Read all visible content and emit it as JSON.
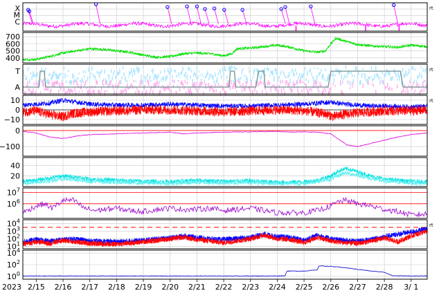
{
  "chart_data": {
    "type": "line",
    "title": "",
    "xaxis": {
      "start_label": "2023",
      "ticks": [
        "2/15",
        "2/16",
        "2/17",
        "2/18",
        "2/19",
        "2/20",
        "2/21",
        "2/22",
        "2/23",
        "2/24",
        "2/25",
        "2/26",
        "2/27",
        "2/28",
        "3/ 1"
      ],
      "range_days": [
        14.5,
        29.6
      ],
      "tick_days": [
        15,
        16,
        17,
        18,
        19,
        20,
        21,
        22,
        23,
        24,
        25,
        26,
        27,
        28,
        29
      ],
      "grid": true
    },
    "panels": [
      {
        "id": "flares",
        "ylabels": [
          "X",
          "M",
          "C"
        ],
        "unit_label": "rt",
        "series": [
          {
            "color": "#ff00ff"
          }
        ],
        "flare_markers_days": [
          14.7,
          14.74,
          17.23,
          19.9,
          20.63,
          21.0,
          21.3,
          21.65,
          22.02,
          22.7,
          24.15,
          24.3,
          25.25,
          28.35
        ],
        "flare_marker_levels": [
          0.75,
          0.7,
          0.95,
          0.85,
          0.87,
          0.87,
          0.78,
          0.8,
          0.75,
          0.75,
          0.78,
          0.85,
          0.87,
          0.92
        ]
      },
      {
        "id": "speed",
        "ylabels": [
          "700",
          "600",
          "500",
          "400"
        ],
        "ylim": [
          330,
          760
        ],
        "series": [
          {
            "color": "#00e000",
            "x": [
              14.5,
              15.0,
              15.5,
              16.0,
              16.5,
              17.0,
              17.5,
              18.0,
              18.5,
              19.0,
              19.5,
              20.0,
              20.5,
              21.0,
              21.5,
              22.0,
              22.3,
              22.5,
              23.0,
              23.5,
              24.0,
              24.5,
              25.0,
              25.5,
              25.8,
              26.0,
              26.2,
              26.5,
              27.0,
              27.5,
              28.0,
              28.5,
              29.0,
              29.6
            ],
            "y": [
              375,
              380,
              420,
              470,
              500,
              530,
              520,
              500,
              480,
              440,
              410,
              420,
              460,
              470,
              460,
              430,
              460,
              530,
              540,
              560,
              580,
              550,
              500,
              480,
              500,
              600,
              680,
              640,
              590,
              570,
              560,
              550,
              580,
              560
            ]
          }
        ]
      },
      {
        "id": "polarity",
        "ylabels": [
          "T",
          "A"
        ],
        "unit_label": "rt",
        "series": [
          {
            "color": "#aee6ff",
            "name": ""
          },
          {
            "color": "#ffb0ee",
            "name": ""
          },
          {
            "color": "#6e8e8e",
            "name": "",
            "x": [
              14.5,
              15.1,
              15.15,
              15.3,
              15.35,
              22.2,
              22.25,
              22.4,
              22.45,
              23.2,
              23.3,
              23.5,
              23.55,
              25.9,
              26.0,
              28.6,
              28.7,
              29.1,
              29.2,
              29.6
            ],
            "y": [
              0,
              0,
              1,
              1,
              0,
              0,
              1,
              1,
              0,
              0,
              1,
              1,
              0,
              0,
              1,
              1,
              0,
              0,
              0,
              0
            ]
          }
        ]
      },
      {
        "id": "imf",
        "ylabels": [
          "10",
          "0",
          "−10"
        ],
        "ylim": [
          -15,
          15
        ],
        "unit_label": "rt",
        "series": [
          {
            "color": "#0000ff",
            "x": [
              14.5,
              15.5,
              16.0,
              16.5,
              17.0,
              18.0,
              19.0,
              20.0,
              21.0,
              22.0,
              23.0,
              24.0,
              25.0,
              26.0,
              26.5,
              27.0,
              27.5,
              28.0,
              29.0,
              29.6
            ],
            "y": [
              5,
              7,
              10,
              8,
              6,
              5,
              5,
              6,
              5,
              4,
              4,
              5,
              6,
              8,
              6,
              5,
              4,
              4,
              3,
              4
            ]
          },
          {
            "color": "#ff0000",
            "x": [
              14.5,
              15.0,
              15.5,
              16.0,
              16.3,
              16.6,
              17.0,
              18.0,
              19.0,
              20.0,
              21.0,
              22.0,
              23.0,
              24.0,
              25.0,
              25.8,
              26.1,
              26.4,
              27.0,
              28.0,
              29.0,
              29.6
            ],
            "y": [
              -2,
              -1,
              -5,
              -7,
              -4,
              -3,
              -2,
              -1,
              0,
              0,
              -1,
              -2,
              -1,
              0,
              -1,
              -4,
              -7,
              -5,
              -3,
              -1,
              -1,
              0
            ]
          }
        ]
      },
      {
        "id": "dst",
        "ylabels": [
          "0",
          "−100"
        ],
        "ylim": [
          -160,
          30
        ],
        "series": [
          {
            "color": "#dd00dd",
            "x": [
              14.5,
              15.0,
              15.5,
              16.0,
              16.5,
              17.0,
              18.0,
              19.0,
              20.0,
              20.5,
              21.0,
              22.0,
              23.0,
              24.0,
              24.5,
              25.0,
              25.5,
              26.0,
              26.3,
              26.6,
              27.0,
              27.5,
              28.0,
              28.5,
              29.0,
              29.6
            ],
            "y": [
              -5,
              -15,
              -40,
              -50,
              -35,
              -25,
              -20,
              -15,
              -10,
              -20,
              -15,
              -10,
              -8,
              -5,
              -10,
              -8,
              -10,
              -20,
              -55,
              -90,
              -100,
              -80,
              -60,
              -40,
              -25,
              -15
            ]
          }
        ]
      },
      {
        "id": "kp",
        "ylabels": [
          "40",
          "20"
        ],
        "ylim": [
          0,
          55
        ],
        "series": [
          {
            "color": "#00e0e0",
            "x": [
              14.5,
              15.0,
              15.5,
              16.0,
              16.5,
              17.0,
              18.0,
              19.0,
              20.0,
              21.0,
              22.0,
              23.0,
              24.0,
              25.0,
              25.5,
              26.0,
              26.3,
              26.6,
              27.0,
              27.5,
              28.0,
              29.0,
              29.6
            ],
            "y": [
              10,
              12,
              16,
              20,
              18,
              14,
              12,
              10,
              9,
              12,
              10,
              11,
              8,
              9,
              12,
              20,
              30,
              34,
              28,
              20,
              14,
              10,
              9
            ]
          },
          {
            "color": "#60f0f0",
            "x": [
              14.5,
              15.5,
              16.0,
              16.5,
              17.0,
              18.0,
              19.0,
              20.0,
              21.0,
              22.0,
              23.0,
              24.0,
              25.0,
              26.0,
              26.5,
              27.0,
              27.5,
              28.0,
              29.0,
              29.6
            ],
            "y": [
              6,
              10,
              15,
              13,
              10,
              8,
              7,
              6,
              8,
              7,
              8,
              6,
              6,
              14,
              26,
              22,
              15,
              10,
              7,
              6
            ]
          }
        ]
      },
      {
        "id": "proton",
        "ylabels": [
          "10^7",
          "10^6"
        ],
        "log": true,
        "ylim": [
          4.7,
          7.4
        ],
        "threshold_lines": [
          7.0,
          6.0
        ],
        "series": [
          {
            "color": "#9900cc",
            "x": [
              14.5,
              15.0,
              15.3,
              15.6,
              16.0,
              16.4,
              16.8,
              17.2,
              17.6,
              18.0,
              18.5,
              19.0,
              19.5,
              20.0,
              20.5,
              21.0,
              21.5,
              22.0,
              22.5,
              23.0,
              23.5,
              24.0,
              25.0,
              25.5,
              26.0,
              26.3,
              26.6,
              27.0,
              27.5,
              28.0,
              28.5,
              29.0,
              29.6
            ],
            "y": [
              5.2,
              5.8,
              6.0,
              5.6,
              6.3,
              6.3,
              5.6,
              5.4,
              5.5,
              5.6,
              5.4,
              5.3,
              5.5,
              5.6,
              5.5,
              5.5,
              5.6,
              5.4,
              5.5,
              5.6,
              5.4,
              5.2,
              5.2,
              5.4,
              5.8,
              6.2,
              6.3,
              6.0,
              5.8,
              5.5,
              5.3,
              5.0,
              5.1
            ]
          }
        ]
      },
      {
        "id": "electron",
        "ylabels": [
          "10^4",
          "10^3",
          "10^2",
          "10^1"
        ],
        "log": true,
        "ylim": [
          0.7,
          4.5
        ],
        "unit_label": "rt",
        "threshold_line_dashed": 3.5,
        "series": [
          {
            "color": "#0000ff",
            "x": [
              14.5,
              15.0,
              15.5,
              16.0,
              16.5,
              17.0,
              18.0,
              19.0,
              19.5,
              20.0,
              20.5,
              21.0,
              21.5,
              22.0,
              23.0,
              23.5,
              24.0,
              24.5,
              25.0,
              25.5,
              26.0,
              26.5,
              27.0,
              27.5,
              28.0,
              28.5,
              29.0,
              29.6
            ],
            "y": [
              1.6,
              1.9,
              1.7,
              1.9,
              2.0,
              1.7,
              1.6,
              1.8,
              2.0,
              2.1,
              2.4,
              2.2,
              2.0,
              1.9,
              2.2,
              2.6,
              2.3,
              2.2,
              1.8,
              2.5,
              2.0,
              1.8,
              1.7,
              1.9,
              2.3,
              2.6,
              2.9,
              3.3
            ]
          },
          {
            "color": "#ff0000",
            "x": [
              14.5,
              15.0,
              15.5,
              16.0,
              16.5,
              17.0,
              18.0,
              19.0,
              19.5,
              20.0,
              20.5,
              21.0,
              21.5,
              22.0,
              23.0,
              23.5,
              24.0,
              24.5,
              25.0,
              25.5,
              26.0,
              26.5,
              27.0,
              27.5,
              28.0,
              28.5,
              29.0,
              29.6
            ],
            "y": [
              1.3,
              1.6,
              1.4,
              1.8,
              1.6,
              1.4,
              1.3,
              1.6,
              1.8,
              2.0,
              2.2,
              1.9,
              1.7,
              1.5,
              2.0,
              2.5,
              2.0,
              1.9,
              1.5,
              2.2,
              1.7,
              1.5,
              1.4,
              1.7,
              2.1,
              1.6,
              2.4,
              3.0
            ]
          }
        ]
      },
      {
        "id": "xray_flux",
        "ylabels": [
          "10^4",
          "10^2",
          "10^0"
        ],
        "log": true,
        "ylim": [
          -0.5,
          4.5
        ],
        "series": [
          {
            "color": "#0000cc",
            "x": [
              14.5,
              16.0,
              18.0,
              20.0,
              22.0,
              24.0,
              24.3,
              24.35,
              25.0,
              25.5,
              25.55,
              26.0,
              26.5,
              27.0,
              27.5,
              28.0,
              28.2,
              28.3,
              29.0,
              29.6
            ],
            "y": [
              0.05,
              0.05,
              0.05,
              0.05,
              0.05,
              0.05,
              0.1,
              0.9,
              0.9,
              1.1,
              1.8,
              1.7,
              1.5,
              1.2,
              0.9,
              0.7,
              0.3,
              0.1,
              0.05,
              0.05
            ]
          }
        ]
      }
    ]
  }
}
